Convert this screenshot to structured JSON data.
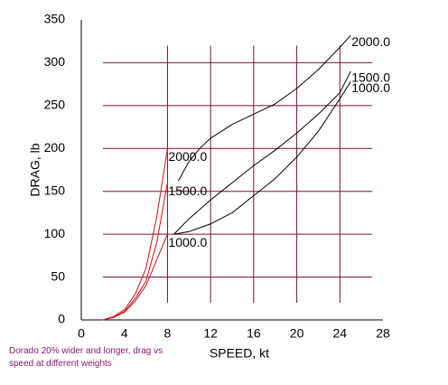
{
  "chart_data": {
    "type": "line",
    "xlabel": "SPEED, kt",
    "ylabel": "DRAG, lb",
    "caption": "Dorado 20% wider and longer, drag vs speed at different weights",
    "xlim": [
      0,
      28
    ],
    "xticks": [
      0,
      4,
      8,
      12,
      16,
      20,
      24,
      28
    ],
    "ylim": [
      0,
      350
    ],
    "yticks": [
      0,
      50,
      100,
      150,
      200,
      250,
      300,
      350
    ],
    "grid": true,
    "grid_color": "#7a1030",
    "series": [
      {
        "name": "2000.0",
        "color": "#d01010",
        "x": [
          2,
          3,
          4,
          5,
          6,
          7,
          8
        ],
        "values": [
          0,
          4,
          12,
          30,
          60,
          120,
          200
        ]
      },
      {
        "name": "1500.0",
        "color": "#d01010",
        "x": [
          2,
          3,
          4,
          5,
          6,
          7,
          8
        ],
        "values": [
          0,
          3,
          10,
          25,
          45,
          90,
          160
        ]
      },
      {
        "name": "1000.0",
        "color": "#d01010",
        "x": [
          2,
          3,
          4,
          5,
          6,
          7,
          8
        ],
        "values": [
          0,
          3,
          9,
          22,
          40,
          70,
          100
        ]
      },
      {
        "name": "2000.0",
        "color": "#000000",
        "x": [
          9,
          10,
          11,
          12,
          14,
          16,
          18,
          20,
          22,
          24,
          25
        ],
        "values": [
          162,
          185,
          200,
          212,
          228,
          240,
          252,
          270,
          292,
          318,
          332
        ]
      },
      {
        "name": "1500.0",
        "color": "#000000",
        "x": [
          8.6,
          10,
          12,
          14,
          16,
          18,
          20,
          22,
          24,
          25
        ],
        "values": [
          100,
          118,
          140,
          160,
          180,
          198,
          218,
          240,
          265,
          290
        ]
      },
      {
        "name": "1000.0",
        "color": "#000000",
        "x": [
          8.6,
          10,
          12,
          14,
          16,
          18,
          20,
          22,
          24,
          25
        ],
        "values": [
          100,
          103,
          112,
          125,
          145,
          165,
          190,
          220,
          258,
          278
        ]
      }
    ]
  }
}
